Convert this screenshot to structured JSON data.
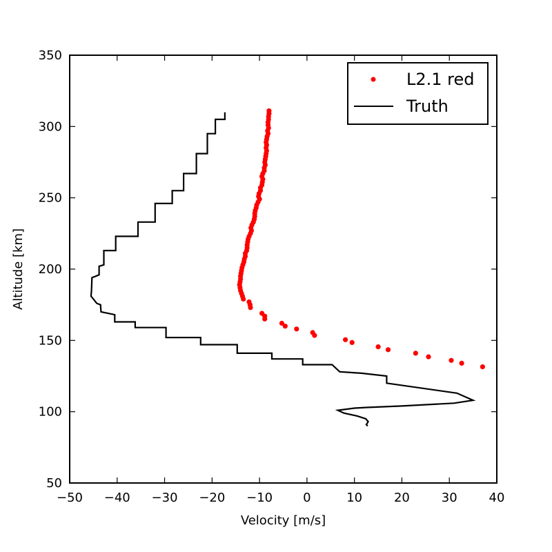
{
  "chart_data": {
    "type": "line",
    "title": "",
    "xlabel": "Velocity [m/s]",
    "ylabel": "Altitude [km]",
    "xlim": [
      -50,
      40
    ],
    "ylim": [
      50,
      350
    ],
    "xticks": [
      -50,
      -40,
      -30,
      -20,
      -10,
      0,
      10,
      20,
      30,
      40
    ],
    "yticks": [
      50,
      100,
      150,
      200,
      250,
      300,
      350
    ],
    "xtick_labels": [
      "−50",
      "−40",
      "−30",
      "−20",
      "−10",
      "0",
      "10",
      "20",
      "30",
      "40"
    ],
    "ytick_labels": [
      "50",
      "100",
      "150",
      "200",
      "250",
      "300",
      "350"
    ],
    "grid": false,
    "legend_position": "top-right",
    "series": [
      {
        "name": "L2.1 red",
        "style": "markers",
        "color": "#ff0000",
        "points": [
          [
            -8.0,
            311
          ],
          [
            -8.0,
            309
          ],
          [
            -8.1,
            307
          ],
          [
            -8.1,
            305
          ],
          [
            -8.2,
            303
          ],
          [
            -8.2,
            301
          ],
          [
            -8.1,
            299
          ],
          [
            -8.3,
            297
          ],
          [
            -8.2,
            295
          ],
          [
            -8.4,
            293
          ],
          [
            -8.5,
            291
          ],
          [
            -8.6,
            289
          ],
          [
            -8.5,
            287
          ],
          [
            -8.6,
            285
          ],
          [
            -8.5,
            283
          ],
          [
            -8.6,
            281
          ],
          [
            -8.7,
            279
          ],
          [
            -8.8,
            277
          ],
          [
            -8.9,
            275
          ],
          [
            -8.8,
            273
          ],
          [
            -9.0,
            271
          ],
          [
            -9.0,
            269
          ],
          [
            -9.3,
            267
          ],
          [
            -9.5,
            265
          ],
          [
            -9.3,
            263
          ],
          [
            -9.4,
            261
          ],
          [
            -9.5,
            259
          ],
          [
            -9.8,
            257
          ],
          [
            -9.8,
            255
          ],
          [
            -10.1,
            253
          ],
          [
            -10.2,
            251
          ],
          [
            -10.0,
            249
          ],
          [
            -10.3,
            247
          ],
          [
            -10.6,
            245
          ],
          [
            -10.7,
            243
          ],
          [
            -10.9,
            241
          ],
          [
            -11.0,
            239
          ],
          [
            -11.0,
            237
          ],
          [
            -11.1,
            235
          ],
          [
            -11.3,
            233
          ],
          [
            -11.6,
            231
          ],
          [
            -11.8,
            229
          ],
          [
            -11.7,
            227
          ],
          [
            -11.9,
            225
          ],
          [
            -12.2,
            223
          ],
          [
            -12.4,
            221
          ],
          [
            -12.5,
            219
          ],
          [
            -12.6,
            217
          ],
          [
            -12.6,
            215
          ],
          [
            -12.7,
            213
          ],
          [
            -13.0,
            211
          ],
          [
            -13.0,
            209
          ],
          [
            -13.2,
            207
          ],
          [
            -13.3,
            205
          ],
          [
            -13.5,
            203
          ],
          [
            -13.7,
            201
          ],
          [
            -13.8,
            199
          ],
          [
            -13.9,
            197
          ],
          [
            -14.0,
            195
          ],
          [
            -14.0,
            193
          ],
          [
            -14.1,
            191
          ],
          [
            -14.2,
            189
          ],
          [
            -14.1,
            187
          ],
          [
            -14.0,
            185
          ],
          [
            -13.8,
            183
          ],
          [
            -13.6,
            181
          ],
          [
            -13.4,
            179
          ],
          [
            -12.2,
            177
          ],
          [
            -12.0,
            175
          ],
          [
            -11.9,
            173
          ],
          [
            -9.5,
            169
          ],
          [
            -8.9,
            167
          ],
          [
            -8.9,
            165
          ],
          [
            -5.3,
            162
          ],
          [
            -4.6,
            160
          ],
          [
            -2.2,
            158
          ],
          [
            1.2,
            155.5
          ],
          [
            1.6,
            153.5
          ],
          [
            8.1,
            150.5
          ],
          [
            9.5,
            148.5
          ],
          [
            15.0,
            145.5
          ],
          [
            17.1,
            143.5
          ],
          [
            22.9,
            141
          ],
          [
            25.6,
            138.5
          ],
          [
            30.4,
            136
          ],
          [
            32.6,
            134
          ],
          [
            37.0,
            131.5
          ]
        ]
      },
      {
        "name": "Truth",
        "style": "line",
        "color": "#000000",
        "points": [
          [
            -17.3,
            310
          ],
          [
            -17.3,
            305
          ],
          [
            -19.3,
            305
          ],
          [
            -19.3,
            295
          ],
          [
            -21.0,
            295
          ],
          [
            -21.0,
            281
          ],
          [
            -23.3,
            281
          ],
          [
            -23.3,
            267
          ],
          [
            -26.0,
            267
          ],
          [
            -26.0,
            255
          ],
          [
            -28.4,
            255
          ],
          [
            -28.4,
            246
          ],
          [
            -32.0,
            246
          ],
          [
            -32.0,
            233
          ],
          [
            -35.6,
            233
          ],
          [
            -35.6,
            223
          ],
          [
            -40.3,
            223
          ],
          [
            -40.3,
            213
          ],
          [
            -42.8,
            213
          ],
          [
            -42.8,
            203
          ],
          [
            -43.8,
            202
          ],
          [
            -43.8,
            196
          ],
          [
            -44.5,
            195
          ],
          [
            -45.3,
            194
          ],
          [
            -45.4,
            185
          ],
          [
            -45.5,
            181
          ],
          [
            -45.0,
            179
          ],
          [
            -44.3,
            176
          ],
          [
            -43.5,
            175
          ],
          [
            -43.4,
            170
          ],
          [
            -40.5,
            168
          ],
          [
            -40.5,
            163
          ],
          [
            -36.2,
            163
          ],
          [
            -36.2,
            159
          ],
          [
            -29.7,
            159
          ],
          [
            -29.7,
            152
          ],
          [
            -22.4,
            152
          ],
          [
            -22.4,
            147
          ],
          [
            -14.7,
            147
          ],
          [
            -14.7,
            141
          ],
          [
            -7.4,
            141
          ],
          [
            -7.4,
            137
          ],
          [
            -0.9,
            137
          ],
          [
            -0.9,
            133
          ],
          [
            5.3,
            133
          ],
          [
            6.9,
            128
          ],
          [
            11.5,
            127
          ],
          [
            16.8,
            125
          ],
          [
            16.8,
            120
          ],
          [
            31.6,
            113
          ],
          [
            35.0,
            108
          ],
          [
            31.0,
            106
          ],
          [
            20.0,
            104
          ],
          [
            12.6,
            103
          ],
          [
            10.0,
            102.5
          ],
          [
            6.5,
            101
          ],
          [
            7.8,
            99
          ],
          [
            10.6,
            97
          ],
          [
            12.4,
            95
          ],
          [
            12.9,
            93
          ],
          [
            12.5,
            91
          ],
          [
            12.8,
            90
          ]
        ]
      }
    ]
  }
}
